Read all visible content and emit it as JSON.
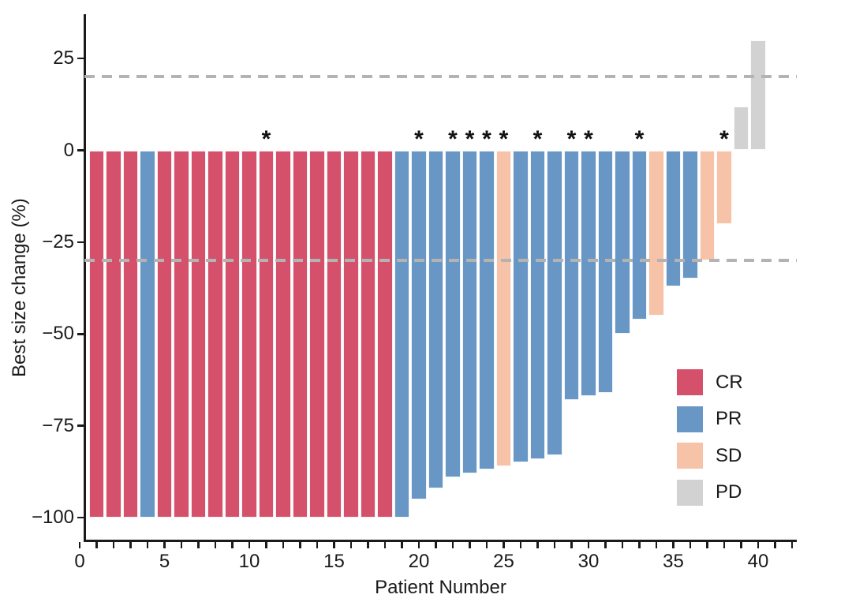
{
  "chart_data": {
    "type": "bar",
    "subtype": "waterfall",
    "title": "",
    "xlabel": "Patient Number",
    "ylabel": "Best size change (%)",
    "x": [
      1,
      2,
      3,
      4,
      5,
      6,
      7,
      8,
      9,
      10,
      11,
      12,
      13,
      14,
      15,
      16,
      17,
      18,
      19,
      20,
      21,
      22,
      23,
      24,
      25,
      26,
      27,
      28,
      29,
      30,
      31,
      32,
      33,
      34,
      35,
      36,
      37,
      38,
      39,
      40
    ],
    "values": [
      -100,
      -100,
      -100,
      -100,
      -100,
      -100,
      -100,
      -100,
      -100,
      -100,
      -100,
      -100,
      -100,
      -100,
      -100,
      -100,
      -100,
      -100,
      -100,
      -95,
      -92,
      -89,
      -88,
      -87,
      -86,
      -85,
      -84,
      -83,
      -68,
      -67,
      -66,
      -50,
      -46,
      -45,
      -37,
      -35,
      -30,
      -20,
      12,
      30
    ],
    "response": [
      "CR",
      "CR",
      "CR",
      "PR",
      "CR",
      "CR",
      "CR",
      "CR",
      "CR",
      "CR",
      "CR",
      "CR",
      "CR",
      "CR",
      "CR",
      "CR",
      "CR",
      "CR",
      "PR",
      "PR",
      "PR",
      "PR",
      "PR",
      "PR",
      "SD",
      "PR",
      "PR",
      "PR",
      "PR",
      "PR",
      "PR",
      "PR",
      "PR",
      "SD",
      "PR",
      "PR",
      "SD",
      "SD",
      "PD",
      "PD"
    ],
    "asterisk_patients": [
      11,
      20,
      22,
      23,
      24,
      25,
      27,
      29,
      30,
      33,
      38
    ],
    "reference_lines": [
      20,
      -30
    ],
    "xlim": [
      0,
      42
    ],
    "ylim": [
      -100,
      32
    ],
    "grid": false,
    "legend_position": "right-lower"
  },
  "axes": {
    "x_label": "Patient Number",
    "y_label": "Best size change (%)",
    "y_ticks": [
      {
        "value": 25,
        "label": "25"
      },
      {
        "value": 0,
        "label": "0"
      },
      {
        "value": -25,
        "label": "−25"
      },
      {
        "value": -50,
        "label": "−50"
      },
      {
        "value": -75,
        "label": "−75"
      },
      {
        "value": -100,
        "label": "−100"
      }
    ],
    "x_ticks": [
      {
        "value": 0,
        "label": "0"
      },
      {
        "value": 5,
        "label": "5"
      },
      {
        "value": 10,
        "label": "10"
      },
      {
        "value": 15,
        "label": "15"
      },
      {
        "value": 20,
        "label": "20"
      },
      {
        "value": 25,
        "label": "25"
      },
      {
        "value": 30,
        "label": "30"
      },
      {
        "value": 35,
        "label": "35"
      },
      {
        "value": 40,
        "label": "40"
      }
    ],
    "x_minor_tick_step": 1,
    "x_minor_tick_max": 42
  },
  "legend": [
    {
      "label": "CR",
      "color": "#D5506B"
    },
    {
      "label": "PR",
      "color": "#6896C5"
    },
    {
      "label": "SD",
      "color": "#F6C3A9"
    },
    {
      "label": "PD",
      "color": "#D2D2D2"
    }
  ],
  "colors": {
    "reference_line": "#B3B3B3",
    "axis": "#1a1a1a",
    "asterisk": "#111111"
  },
  "marker": "*"
}
